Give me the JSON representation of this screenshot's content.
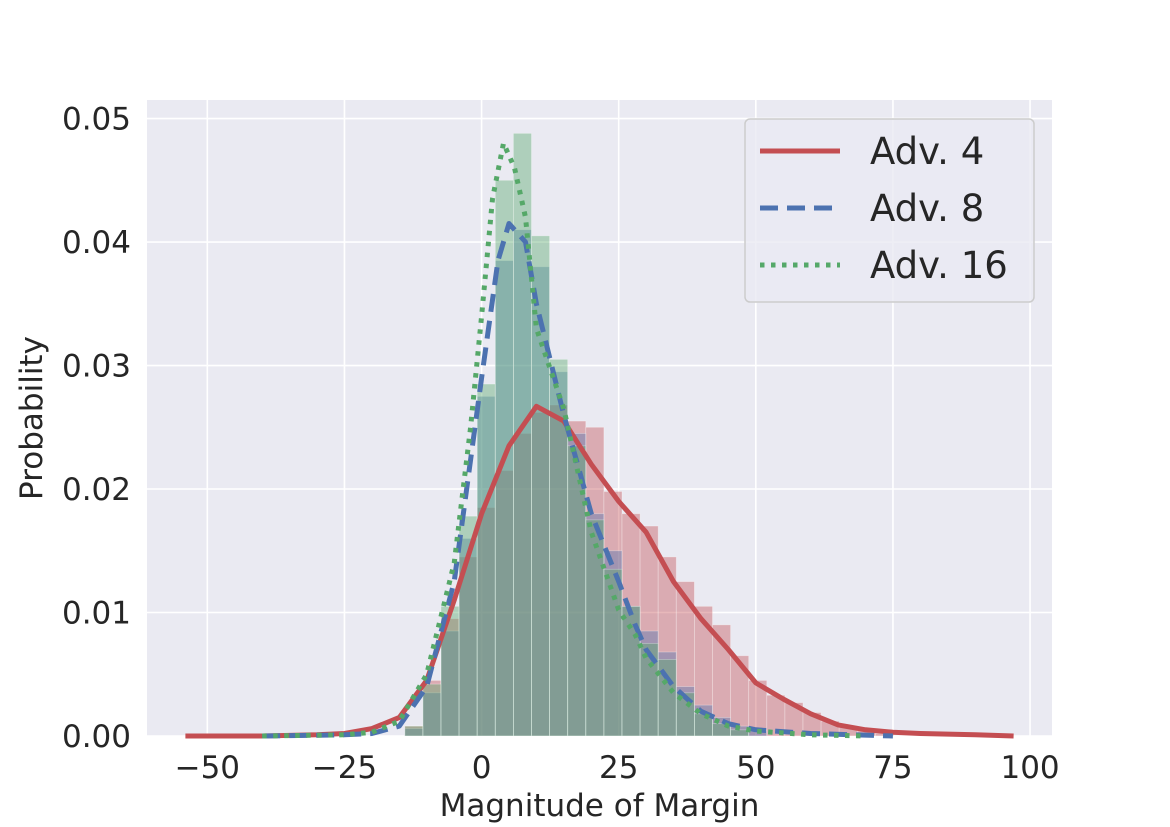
{
  "chart_data": {
    "type": "area",
    "title": "",
    "xlabel": "Magnitude of Margin",
    "ylabel": "Probability",
    "xlim": [
      -61,
      104
    ],
    "ylim": [
      0,
      0.0515
    ],
    "xticks": [
      -50,
      -25,
      0,
      25,
      50,
      75,
      100
    ],
    "xtick_labels": [
      "−50",
      "−25",
      "0",
      "25",
      "50",
      "75",
      "100"
    ],
    "yticks": [
      0,
      0.01,
      0.02,
      0.03,
      0.04,
      0.05
    ],
    "ytick_labels": [
      "0.00",
      "0.01",
      "0.02",
      "0.03",
      "0.04",
      "0.05"
    ],
    "grid": true,
    "legend_position": "top-right",
    "legend": [
      "Adv. 4",
      "Adv. 8",
      "Adv. 16"
    ],
    "colors": {
      "background": "#eaeaf2",
      "grid": "#ffffff",
      "red": "#c44e52",
      "blue": "#4c72b0",
      "green": "#55a868"
    },
    "series": [
      {
        "name": "Adv. 4",
        "color": "#c44e52",
        "line_style": "solid",
        "kde": [
          [
            -54,
            0
          ],
          [
            -40,
            0
          ],
          [
            -30,
            0.0001
          ],
          [
            -25,
            0.0002
          ],
          [
            -20,
            0.0006
          ],
          [
            -15,
            0.0015
          ],
          [
            -10,
            0.0045
          ],
          [
            -5,
            0.011
          ],
          [
            0,
            0.018
          ],
          [
            5,
            0.0235
          ],
          [
            10,
            0.0267
          ],
          [
            15,
            0.0255
          ],
          [
            20,
            0.022
          ],
          [
            25,
            0.019
          ],
          [
            30,
            0.0165
          ],
          [
            35,
            0.0125
          ],
          [
            40,
            0.0095
          ],
          [
            45,
            0.007
          ],
          [
            50,
            0.0043
          ],
          [
            55,
            0.003
          ],
          [
            60,
            0.0018
          ],
          [
            65,
            0.0009
          ],
          [
            70,
            0.0005
          ],
          [
            75,
            0.0003
          ],
          [
            80,
            0.0002
          ],
          [
            90,
            0.0001
          ],
          [
            97,
            0
          ]
        ],
        "hist_bin_width": 3.3,
        "hist": [
          [
            -14,
            0.0008
          ],
          [
            -10.7,
            0.0045
          ],
          [
            -7.4,
            0.0095
          ],
          [
            -4.1,
            0.0145
          ],
          [
            -0.8,
            0.0185
          ],
          [
            2.5,
            0.0215
          ],
          [
            5.8,
            0.0245
          ],
          [
            9.1,
            0.0262
          ],
          [
            12.4,
            0.0268
          ],
          [
            15.7,
            0.0255
          ],
          [
            19,
            0.025
          ],
          [
            22.3,
            0.0198
          ],
          [
            25.6,
            0.018
          ],
          [
            28.9,
            0.017
          ],
          [
            32.2,
            0.0145
          ],
          [
            35.5,
            0.0125
          ],
          [
            38.8,
            0.0105
          ],
          [
            42.1,
            0.009
          ],
          [
            45.4,
            0.0065
          ],
          [
            48.7,
            0.0045
          ],
          [
            52,
            0.0033
          ],
          [
            55.3,
            0.0027
          ],
          [
            58.6,
            0.0019
          ],
          [
            61.9,
            0.0012
          ],
          [
            65.2,
            0.0007
          ],
          [
            68.5,
            0.0004
          ],
          [
            71.8,
            0.0002
          ]
        ]
      },
      {
        "name": "Adv. 8",
        "color": "#4c72b0",
        "line_style": "dashed",
        "kde": [
          [
            -40,
            0
          ],
          [
            -25,
            0.0001
          ],
          [
            -20,
            0.0002
          ],
          [
            -15,
            0.0008
          ],
          [
            -10,
            0.004
          ],
          [
            -5,
            0.0125
          ],
          [
            0,
            0.029
          ],
          [
            3,
            0.0385
          ],
          [
            5,
            0.0415
          ],
          [
            8,
            0.04
          ],
          [
            10,
            0.035
          ],
          [
            15,
            0.026
          ],
          [
            20,
            0.018
          ],
          [
            25,
            0.0125
          ],
          [
            28,
            0.009
          ],
          [
            30,
            0.007
          ],
          [
            35,
            0.004
          ],
          [
            40,
            0.002
          ],
          [
            45,
            0.001
          ],
          [
            50,
            0.0005
          ],
          [
            60,
            0.0002
          ],
          [
            75,
            0
          ]
        ],
        "hist_bin_width": 3.3,
        "hist": [
          [
            -14,
            0.0006
          ],
          [
            -10.7,
            0.0035
          ],
          [
            -7.4,
            0.0085
          ],
          [
            -4.1,
            0.016
          ],
          [
            -0.8,
            0.0275
          ],
          [
            2.5,
            0.0385
          ],
          [
            5.8,
            0.041
          ],
          [
            9.1,
            0.038
          ],
          [
            12.4,
            0.0295
          ],
          [
            15.7,
            0.0245
          ],
          [
            19,
            0.018
          ],
          [
            22.3,
            0.015
          ],
          [
            25.6,
            0.0105
          ],
          [
            28.9,
            0.0085
          ],
          [
            32.2,
            0.0068
          ],
          [
            35.5,
            0.004
          ],
          [
            38.8,
            0.0025
          ],
          [
            42.1,
            0.0015
          ],
          [
            45.4,
            0.0008
          ],
          [
            48.7,
            0.0004
          ]
        ]
      },
      {
        "name": "Adv. 16",
        "color": "#55a868",
        "line_style": "dotted",
        "kde": [
          [
            -40,
            0
          ],
          [
            -25,
            0.0001
          ],
          [
            -20,
            0.0003
          ],
          [
            -15,
            0.0012
          ],
          [
            -10,
            0.005
          ],
          [
            -5,
            0.014
          ],
          [
            -2,
            0.025
          ],
          [
            0,
            0.034
          ],
          [
            2,
            0.0435
          ],
          [
            4,
            0.048
          ],
          [
            6,
            0.046
          ],
          [
            8,
            0.042
          ],
          [
            10,
            0.033
          ],
          [
            15,
            0.0265
          ],
          [
            20,
            0.0165
          ],
          [
            25,
            0.0102
          ],
          [
            28,
            0.0082
          ],
          [
            30,
            0.0063
          ],
          [
            35,
            0.0035
          ],
          [
            40,
            0.0018
          ],
          [
            45,
            0.0008
          ],
          [
            50,
            0.0004
          ],
          [
            60,
            0.0001
          ],
          [
            70,
            0
          ]
        ],
        "hist_bin_width": 3.3,
        "hist": [
          [
            -14,
            0.0008
          ],
          [
            -10.7,
            0.0042
          ],
          [
            -7.4,
            0.0105
          ],
          [
            -4.1,
            0.0178
          ],
          [
            -0.8,
            0.0285
          ],
          [
            2.5,
            0.045
          ],
          [
            5.8,
            0.0488
          ],
          [
            9.1,
            0.0405
          ],
          [
            12.4,
            0.0305
          ],
          [
            15.7,
            0.0235
          ],
          [
            19,
            0.0175
          ],
          [
            22.3,
            0.0135
          ],
          [
            25.6,
            0.0105
          ],
          [
            28.9,
            0.0075
          ],
          [
            32.2,
            0.0062
          ],
          [
            35.5,
            0.0035
          ],
          [
            38.8,
            0.0018
          ],
          [
            42.1,
            0.001
          ],
          [
            45.4,
            0.0005
          ]
        ]
      }
    ]
  }
}
